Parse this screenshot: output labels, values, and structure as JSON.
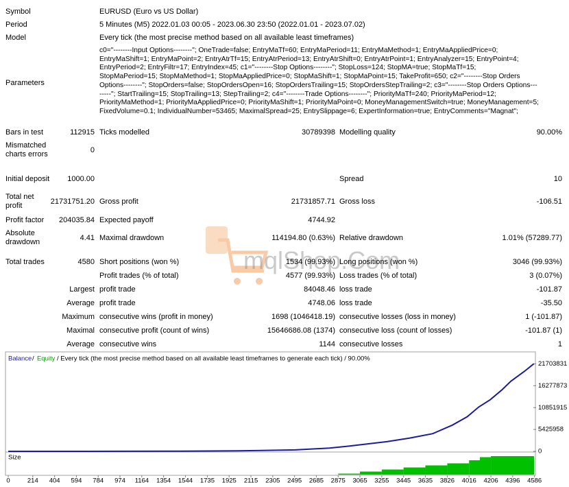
{
  "header": [
    {
      "label": "Symbol",
      "value": "EURUSD (Euro vs US Dollar)"
    },
    {
      "label": "Period",
      "value": "5 Minutes (M5) 2022.01.03 00:05 - 2023.06.30 23:50 (2022.01.01 - 2023.07.02)"
    },
    {
      "label": "Model",
      "value": "Every tick (the most precise method based on all available least timeframes)"
    }
  ],
  "parameters": {
    "label": "Parameters",
    "lines": [
      "c0=\"--------Input Options--------\"; OneTrade=false; EntryMaTf=60; EntryMaPeriod=11; EntryMaMethod=1; EntryMaAppliedPrice=0;",
      "EntryMaShift=1; EntryMaPoint=2; EntryAtrTf=15; EntryAtrPeriod=13; EntryAtrShift=0; EntryAtrPoint=1; EntryAnalyzer=15; EntryPoint=4;",
      "EntryPeriod=2; EntryFiltr=17; EntryIndex=45; c1=\"--------Stop Options--------\"; StopLoss=124; StopMA=true; StopMaTf=15;",
      "StopMaPeriod=15; StopMaMethod=1; StopMaAppliedPrice=0; StopMaShift=1; StopMaPoint=15; TakeProfit=650; c2=\"--------Stop Orders",
      "Options--------\"; StopOrders=false; StopOrdersOpen=16; StopOrdersTrailing=15; StopOrdersStepTrailing=2; c3=\"--------Stop Orders Options---",
      "-----\"; StartTrailing=15; StopTrailing=13; StepTrailing=2; c4=\"--------Trade Options--------\"; PriorityMaTf=240; PriorityMaPeriod=12;",
      "PriorityMaMethod=1; PriorityMaAppliedPrice=0; PriorityMaShift=1; PriorityMaPoint=0; MoneyManagementSwitch=true; MoneyManagement=5;",
      "FixedVolume=0.1; IndividualNumber=53465; MaximalSpread=25; EntrySlippage=6; ExpertInformation=true; EntryComments=\"Magnat\";"
    ]
  },
  "rows": [
    {
      "label": "Bars in test",
      "value": "112915",
      "label2": "Ticks modelled",
      "value2": "30789398",
      "label3": "Modelling quality",
      "value3": "90.00%"
    },
    {
      "label": "Mismatched charts errors",
      "value": "0"
    },
    {
      "label": "Initial deposit",
      "value": "1000.00",
      "label3": "Spread",
      "value3": "10"
    },
    {
      "label": "Total net profit",
      "value": "21731751.20",
      "label2": "Gross profit",
      "value2": "21731857.71",
      "label3": "Gross loss",
      "value3": "-106.51"
    },
    {
      "label": "Profit factor",
      "value": "204035.84",
      "label2": "Expected payoff",
      "value2": "4744.92"
    },
    {
      "label": "Absolute drawdown",
      "value": "4.41",
      "label2": "Maximal drawdown",
      "value2": "114194.80 (0.63%)",
      "label3": "Relative drawdown",
      "value3": "1.01% (57289.77)"
    },
    {
      "label": "Total trades",
      "value": "4580",
      "label2": "Short positions (won %)",
      "value2": "1534 (99.93%)",
      "label3": "Long positions (won %)",
      "value3": "3046 (99.93%)"
    },
    {
      "label2": "Profit trades (% of total)",
      "value2": "4577 (99.93%)",
      "label3": "Loss trades (% of total)",
      "value3": "3 (0.07%)"
    },
    {
      "value": "Largest",
      "label2": "profit trade",
      "value2": "84048.46",
      "label3": "loss trade",
      "value3": "-101.87"
    },
    {
      "value": "Average",
      "label2": "profit trade",
      "value2": "4748.06",
      "label3": "loss trade",
      "value3": "-35.50"
    },
    {
      "value": "Maximum",
      "label2": "consecutive wins (profit in money)",
      "value2": "1698 (1046418.19)",
      "label3": "consecutive losses (loss in money)",
      "value3": "1 (-101.87)"
    },
    {
      "value": "Maximal",
      "label2": "consecutive profit (count of wins)",
      "value2": "15646686.08 (1374)",
      "label3": "consecutive loss (count of losses)",
      "value3": "-101.87 (1)"
    },
    {
      "value": "Average",
      "label2": "consecutive wins",
      "value2": "1144",
      "label3": "consecutive losses",
      "value3": "1"
    }
  ],
  "watermark": "mqlShop.Com",
  "chart_data": {
    "type": "line",
    "legend": {
      "balance": "Balance",
      "separator": "/",
      "equity": "Equity",
      "caption": "/ Every tick (the most precise method based on all available least timeframes to generate each tick) / 90.00%"
    },
    "balance_color": "#1c1c9c",
    "equity_color": "#00a000",
    "series": [
      {
        "name": "Balance",
        "color": "#1c1c9c",
        "x": [
          0,
          500,
          1000,
          1500,
          2000,
          2500,
          2800,
          3000,
          3300,
          3500,
          3700,
          3870,
          4000,
          4100,
          4200,
          4300,
          4380,
          4500,
          4580
        ],
        "values": [
          1000,
          5000,
          20000,
          50000,
          120000,
          350000,
          800000,
          1400000,
          2400000,
          3300000,
          4400000,
          6500000,
          8600000,
          11000000,
          12800000,
          15200000,
          17400000,
          19900000,
          21730000
        ]
      }
    ],
    "xlim": [
      0,
      4600
    ],
    "xticks": [
      0,
      214,
      404,
      594,
      784,
      974,
      1164,
      1354,
      1544,
      1735,
      1925,
      2115,
      2305,
      2495,
      2685,
      2875,
      3065,
      3255,
      3445,
      3635,
      3826,
      4016,
      4206,
      4396,
      4586
    ],
    "ylim": [
      0,
      24000000
    ],
    "yticks": [
      0,
      5425958,
      10851915,
      16277873,
      21703831
    ],
    "grid": false,
    "size": {
      "name": "Size",
      "color": "#00c000",
      "x": [
        2875,
        3065,
        3255,
        3445,
        3635,
        3826,
        4016,
        4110,
        4206
      ],
      "values": [
        0.05,
        0.15,
        0.25,
        0.35,
        0.45,
        0.55,
        0.7,
        0.85,
        0.9
      ],
      "ylim": [
        0,
        1
      ]
    }
  }
}
